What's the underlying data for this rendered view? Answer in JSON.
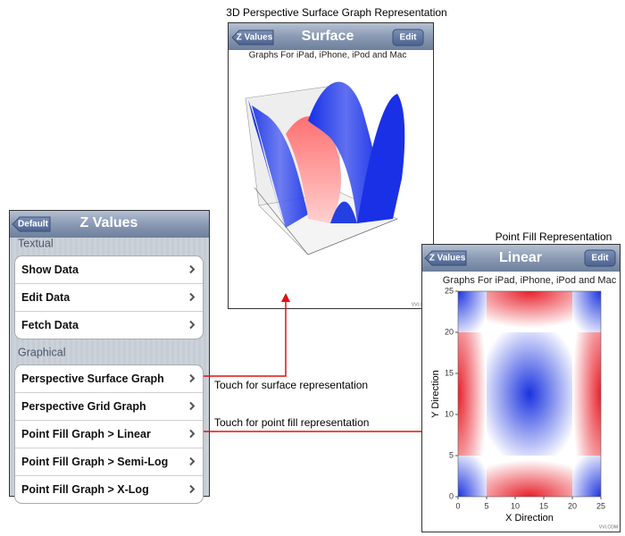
{
  "surface_screen": {
    "caption": "3D Perspective Surface Graph Representation",
    "back_button": "Z Values",
    "title": "Surface",
    "edit_button": "Edit",
    "subtitle": "Graphs For iPad, iPhone, iPod and Mac",
    "footer": "VVI.COM"
  },
  "menu_screen": {
    "back_button": "Default",
    "title": "Z Values",
    "sections": [
      {
        "header": "Textual",
        "items": [
          "Show Data",
          "Edit Data",
          "Fetch Data"
        ]
      },
      {
        "header": "Graphical",
        "items": [
          "Perspective Surface Graph",
          "Perspective Grid Graph",
          "Point Fill Graph > Linear",
          "Point Fill Graph > Semi-Log",
          "Point Fill Graph > X-Log"
        ]
      }
    ]
  },
  "annotations": [
    "Touch for surface representation",
    "Touch for point fill representation"
  ],
  "point_fill_screen": {
    "caption": "Point Fill Representation",
    "back_button": "Z Values",
    "title": "Linear",
    "edit_button": "Edit",
    "subtitle": "Graphs For iPad, iPhone, iPod and Mac",
    "footer": "VVI.COM",
    "x_label": "X Direction",
    "y_label": "Y Direction",
    "xlim": [
      0,
      25
    ],
    "ylim": [
      0,
      25
    ],
    "xticks": [
      0,
      5,
      10,
      15,
      20,
      25
    ],
    "yticks": [
      0,
      5,
      10,
      15,
      20,
      25
    ]
  }
}
